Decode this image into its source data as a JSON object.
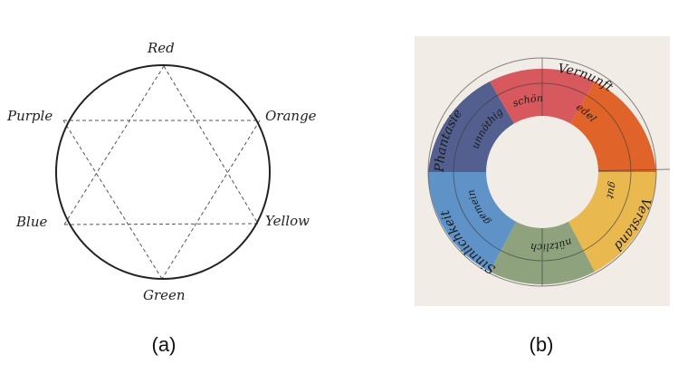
{
  "panel_a": {
    "caption": "(a)",
    "labels": {
      "red": "Red",
      "orange": "Orange",
      "yellow": "Yellow",
      "green": "Green",
      "blue": "Blue",
      "purple": "Purple"
    }
  },
  "panel_b": {
    "caption": "(b)",
    "segment_colors": {
      "red": "#d7595e",
      "orange": "#e0642a",
      "yellow": "#e9b84f",
      "green": "#8ea27e",
      "blue": "#5f93c7",
      "purple": "#53608f",
      "paper": "#f1ece6"
    },
    "script_words": {
      "outer_purple": "Phantasie",
      "outer_red": "Vernunft",
      "outer_yellow": "Verstand",
      "outer_blue": "Sinnlichkeit",
      "inner_red": "schön",
      "inner_orange": "edel",
      "inner_yellow": "gut",
      "inner_green": "nützlich",
      "inner_blue": "gemein",
      "inner_purple": "unnöthig"
    }
  }
}
